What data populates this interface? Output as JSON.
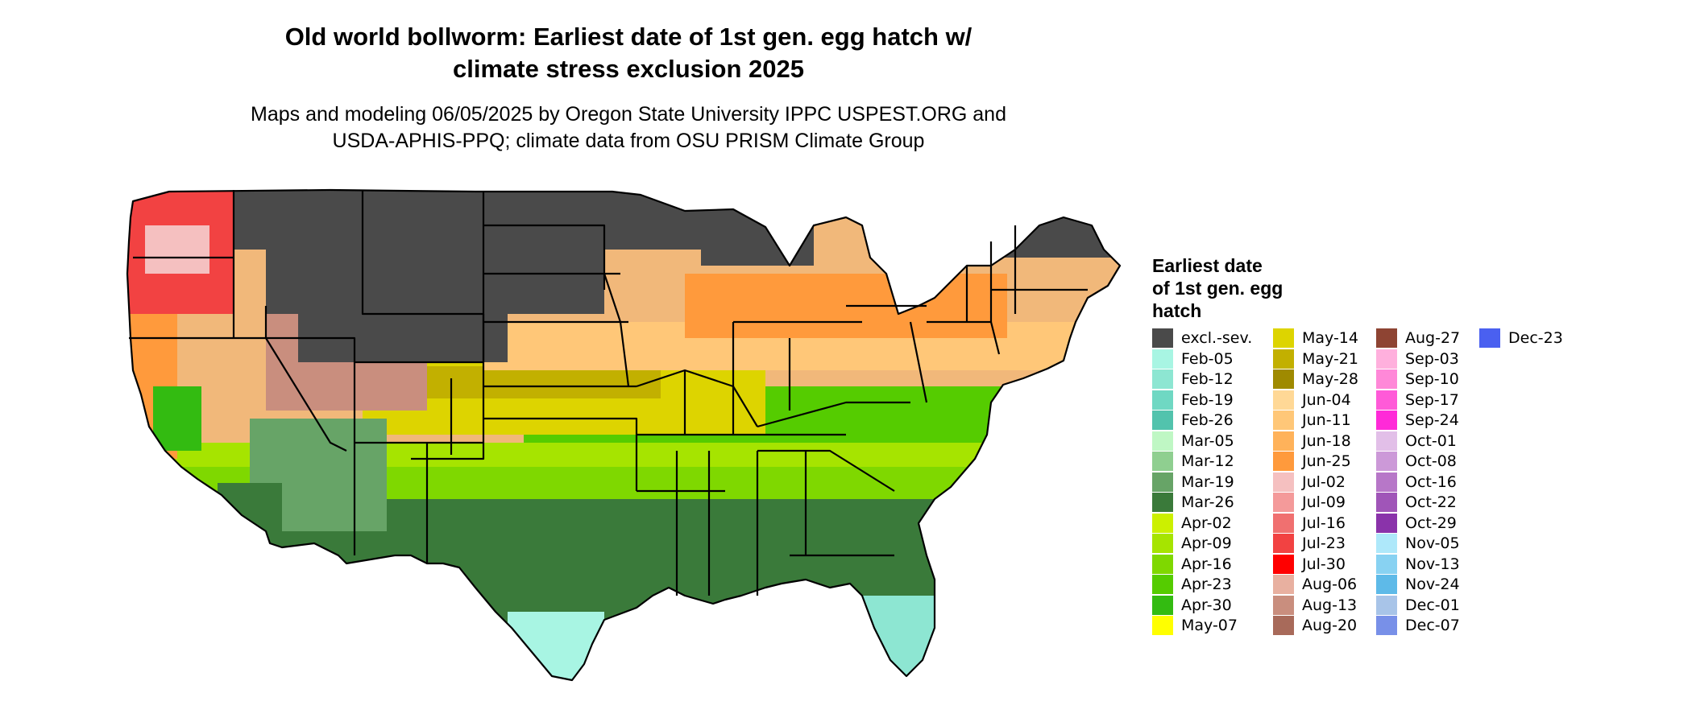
{
  "title_line1": "Old world bollworm: Earliest date of 1st gen. egg hatch w/",
  "title_line2": "climate stress exclusion 2025",
  "subtitle_line1": "Maps and modeling 06/05/2025 by Oregon State University IPPC USPEST.ORG and",
  "subtitle_line2": "USDA-APHIS-PPQ; climate data from OSU PRISM Climate Group",
  "legend": {
    "title_line1": "Earliest date",
    "title_line2": "of 1st gen. egg",
    "title_line3": "hatch",
    "columns": [
      [
        {
          "label": "excl.-sev.",
          "color": "#4a4a4a"
        },
        {
          "label": "Feb-05",
          "color": "#a8f5e3"
        },
        {
          "label": "Feb-12",
          "color": "#8de6d2"
        },
        {
          "label": "Feb-19",
          "color": "#6fd8c3"
        },
        {
          "label": "Feb-26",
          "color": "#52c3ad"
        },
        {
          "label": "Mar-05",
          "color": "#bff7c4"
        },
        {
          "label": "Mar-12",
          "color": "#8fcf90"
        },
        {
          "label": "Mar-19",
          "color": "#67a467"
        },
        {
          "label": "Mar-26",
          "color": "#3a7a3a"
        },
        {
          "label": "Apr-02",
          "color": "#ccf000"
        },
        {
          "label": "Apr-09",
          "color": "#a6e400"
        },
        {
          "label": "Apr-16",
          "color": "#7fd800"
        },
        {
          "label": "Apr-23",
          "color": "#55cc00"
        },
        {
          "label": "Apr-30",
          "color": "#33bb11"
        },
        {
          "label": "May-07",
          "color": "#ffff00"
        }
      ],
      [
        {
          "label": "May-14",
          "color": "#ddd400"
        },
        {
          "label": "May-21",
          "color": "#c2b000"
        },
        {
          "label": "May-28",
          "color": "#9f8a00"
        },
        {
          "label": "Jun-04",
          "color": "#ffd896"
        },
        {
          "label": "Jun-11",
          "color": "#ffc778"
        },
        {
          "label": "Jun-18",
          "color": "#ffb25a"
        },
        {
          "label": "Jun-25",
          "color": "#ff9a3c"
        },
        {
          "label": "Jul-02",
          "color": "#f5c0c0"
        },
        {
          "label": "Jul-09",
          "color": "#f49a9a"
        },
        {
          "label": "Jul-16",
          "color": "#f07070"
        },
        {
          "label": "Jul-23",
          "color": "#f24242"
        },
        {
          "label": "Jul-30",
          "color": "#ff0000"
        },
        {
          "label": "Aug-06",
          "color": "#e8b0a0"
        },
        {
          "label": "Aug-13",
          "color": "#c98e7e"
        },
        {
          "label": "Aug-20",
          "color": "#a86a5a"
        }
      ],
      [
        {
          "label": "Aug-27",
          "color": "#8e4433"
        },
        {
          "label": "Sep-03",
          "color": "#ffb0dd"
        },
        {
          "label": "Sep-10",
          "color": "#ff88d8"
        },
        {
          "label": "Sep-17",
          "color": "#ff5ad8"
        },
        {
          "label": "Sep-24",
          "color": "#ff2ad8"
        },
        {
          "label": "Oct-01",
          "color": "#e2bfe8"
        },
        {
          "label": "Oct-08",
          "color": "#cc99d8"
        },
        {
          "label": "Oct-16",
          "color": "#b777c8"
        },
        {
          "label": "Oct-22",
          "color": "#a055b8"
        },
        {
          "label": "Oct-29",
          "color": "#8a33aa"
        },
        {
          "label": "Nov-05",
          "color": "#aee8fa"
        },
        {
          "label": "Nov-13",
          "color": "#88d2f2"
        },
        {
          "label": "Nov-24",
          "color": "#5ebae8"
        },
        {
          "label": "Dec-01",
          "color": "#a8c4e8"
        },
        {
          "label": "Dec-07",
          "color": "#7890e8"
        }
      ],
      [
        {
          "label": "Dec-23",
          "color": "#4a60f0"
        }
      ]
    ]
  }
}
